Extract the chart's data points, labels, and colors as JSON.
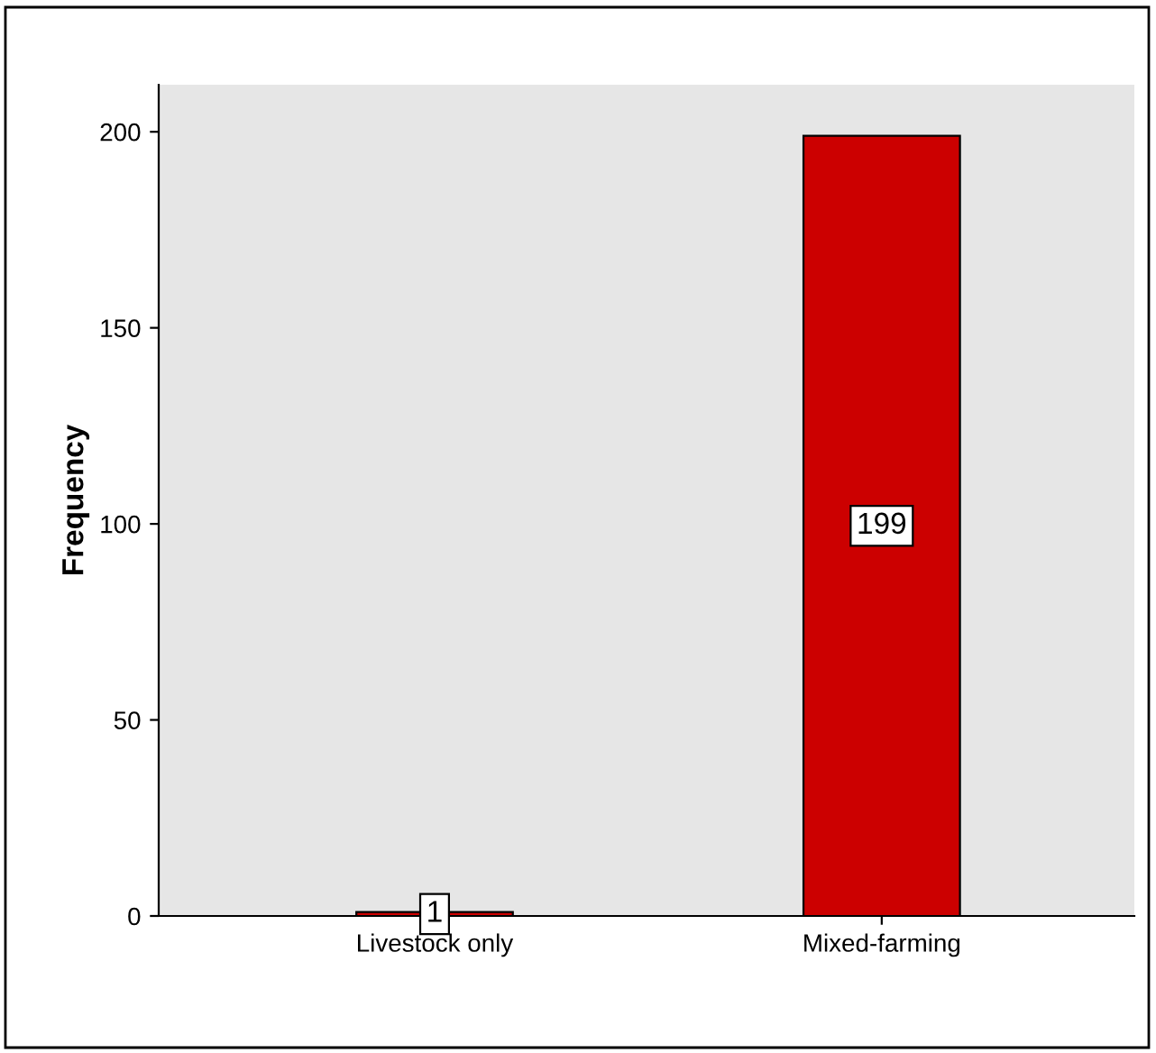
{
  "chart_data": {
    "type": "bar",
    "ylabel": "Frequency",
    "categories": [
      "Livestock only",
      "Mixed-farming"
    ],
    "values": [
      1,
      199
    ],
    "color": "#cc0000",
    "ylim": [
      0,
      212
    ],
    "yticks": [
      0,
      50,
      100,
      150,
      200
    ],
    "grid": false,
    "data_labels": true
  }
}
